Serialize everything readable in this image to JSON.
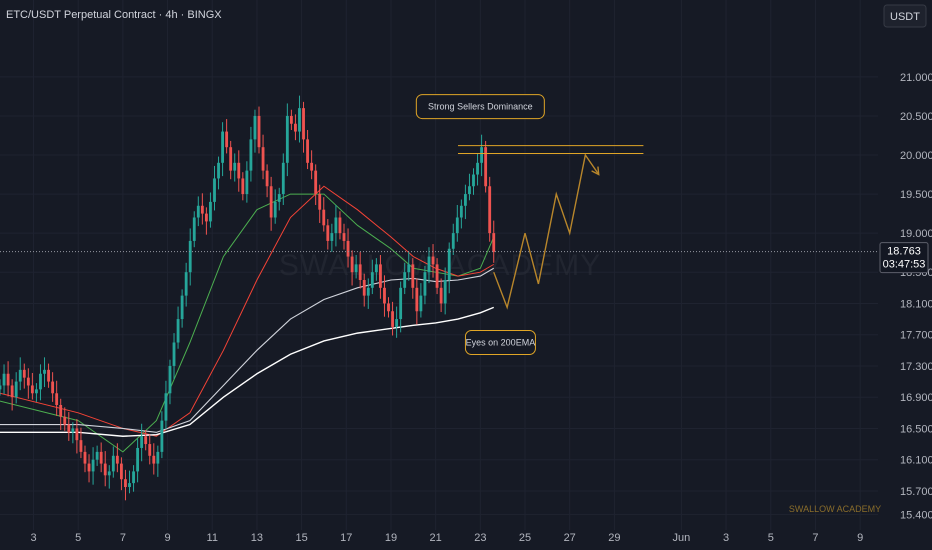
{
  "header": {
    "title": "ETC/USDT Perpetual Contract · 4h · BINGX",
    "currency_button": "USDT"
  },
  "watermark": {
    "center": "SWALLOW ACADEMY",
    "corner": "SWALLOW ACADEMY"
  },
  "current_price": {
    "price": "18.763",
    "countdown": "03:47:53",
    "value": 18.763
  },
  "colors": {
    "background": "#161a25",
    "up": "#26a69a",
    "down": "#ef5350",
    "ema_fast": "#4caf50",
    "ema_slow": "#f44336",
    "ema_100": "#d1d4dc",
    "ema_200": "#ffffff",
    "projection": "#b8862b",
    "annotation_border": "#e0a526"
  },
  "chart_data": {
    "type": "candlestick",
    "title": "ETC/USDT Perpetual Contract · 4h · BINGX",
    "y_axis": {
      "ticks": [
        "21.000",
        "20.500",
        "20.000",
        "19.500",
        "19.000",
        "18.500",
        "18.100",
        "17.700",
        "17.300",
        "16.900",
        "16.500",
        "16.100",
        "15.700",
        "15.400"
      ],
      "tick_values": [
        21.0,
        20.5,
        20.0,
        19.5,
        19.0,
        18.5,
        18.1,
        17.7,
        17.3,
        16.9,
        16.5,
        16.1,
        15.7,
        15.4
      ],
      "range": [
        15.2,
        21.6
      ]
    },
    "x_axis": {
      "ticks": [
        "3",
        "5",
        "7",
        "9",
        "11",
        "13",
        "15",
        "17",
        "19",
        "21",
        "23",
        "25",
        "27",
        "29",
        "Jun",
        "3",
        "5",
        "7",
        "9"
      ],
      "tick_days": [
        3,
        5,
        7,
        9,
        11,
        13,
        15,
        17,
        19,
        21,
        23,
        25,
        27,
        29,
        32,
        34,
        36,
        38,
        40
      ],
      "range_days": [
        1.5,
        40.8
      ]
    },
    "candles_close": [
      17.05,
      17.2,
      17.05,
      16.9,
      17.1,
      17.25,
      17.15,
      17.05,
      16.95,
      17.0,
      17.2,
      17.25,
      17.1,
      16.95,
      16.8,
      16.65,
      16.55,
      16.45,
      16.5,
      16.35,
      16.2,
      16.05,
      15.95,
      16.1,
      16.2,
      16.05,
      15.9,
      15.95,
      16.15,
      16.05,
      15.85,
      15.75,
      15.8,
      15.95,
      16.25,
      16.4,
      16.3,
      16.15,
      16.05,
      16.2,
      16.6,
      16.95,
      17.3,
      17.6,
      17.9,
      18.2,
      18.5,
      18.9,
      19.2,
      19.35,
      19.25,
      19.15,
      19.4,
      19.7,
      19.9,
      20.3,
      20.1,
      19.8,
      19.9,
      19.7,
      19.5,
      19.8,
      20.2,
      20.5,
      20.1,
      19.8,
      19.6,
      19.2,
      19.4,
      19.5,
      19.9,
      20.5,
      20.4,
      20.3,
      20.6,
      20.2,
      19.9,
      19.8,
      19.5,
      19.3,
      19.1,
      18.9,
      19.0,
      19.2,
      19.0,
      18.9,
      18.7,
      18.5,
      18.6,
      18.4,
      18.2,
      18.3,
      18.5,
      18.6,
      18.3,
      18.1,
      18.0,
      17.8,
      17.9,
      18.3,
      18.5,
      18.6,
      18.3,
      18.0,
      18.2,
      18.5,
      18.7,
      18.6,
      18.3,
      18.1,
      18.4,
      18.8,
      19.0,
      19.2,
      19.35,
      19.5,
      19.6,
      19.75,
      19.9,
      20.1,
      19.6,
      19.0,
      18.76
    ],
    "series": [
      {
        "name": "EMA 20",
        "values": [
          16.85,
          16.6,
          16.2,
          16.6,
          17.6,
          18.7,
          19.3,
          19.5,
          19.5,
          19.1,
          18.8,
          18.55,
          18.5,
          18.45,
          18.55,
          18.95
        ]
      },
      {
        "name": "EMA 50",
        "values": [
          16.95,
          16.7,
          16.5,
          16.4,
          16.7,
          17.5,
          18.4,
          19.2,
          19.6,
          19.3,
          18.95,
          18.7,
          18.55,
          18.45,
          18.5,
          18.6
        ]
      },
      {
        "name": "EMA 100",
        "values": [
          16.55,
          16.55,
          16.5,
          16.45,
          16.6,
          17.05,
          17.5,
          17.9,
          18.15,
          18.3,
          18.4,
          18.42,
          18.38,
          18.4,
          18.45,
          18.55
        ]
      },
      {
        "name": "EMA 200",
        "values": [
          16.45,
          16.45,
          16.4,
          16.42,
          16.55,
          16.9,
          17.2,
          17.45,
          17.62,
          17.72,
          17.78,
          17.82,
          17.85,
          17.9,
          17.98,
          18.05
        ]
      }
    ],
    "ema_days": [
      1.5,
      5,
      7,
      8.5,
      10,
      11.5,
      13,
      14.5,
      16,
      17.5,
      19,
      20,
      21,
      22,
      23,
      23.6
    ],
    "projection_path": {
      "days": [
        23.6,
        24.2,
        25.0,
        25.6,
        26.4,
        27.0,
        27.7,
        28.3
      ],
      "values": [
        18.5,
        18.05,
        19.0,
        18.35,
        19.5,
        19.0,
        20.0,
        19.75
      ]
    },
    "resistance_lines": [
      20.12,
      20.02
    ],
    "annotations": [
      {
        "text": "Strong Sellers Dominance",
        "day": 23.0,
        "value": 20.62
      },
      {
        "text": "Eyes on 200EMA",
        "day": 23.9,
        "value": 17.6
      }
    ]
  }
}
